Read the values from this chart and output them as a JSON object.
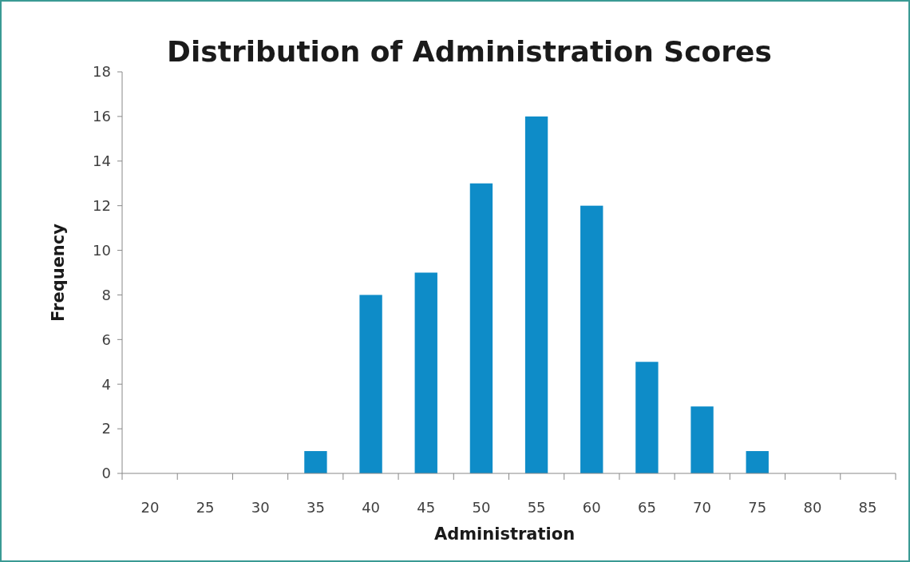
{
  "chart_data": {
    "type": "bar",
    "title": "Distribution of Administration Scores",
    "xlabel": "Administration",
    "ylabel": "Frequency",
    "categories": [
      "20",
      "25",
      "30",
      "35",
      "40",
      "45",
      "50",
      "55",
      "60",
      "65",
      "70",
      "75",
      "80",
      "85"
    ],
    "values": [
      0,
      0,
      0,
      1,
      8,
      9,
      13,
      16,
      12,
      5,
      3,
      1,
      0,
      0
    ],
    "color": "#0e8cc8",
    "ylim": [
      0,
      18
    ],
    "yticks": [
      0,
      2,
      4,
      6,
      8,
      10,
      12,
      14,
      16,
      18
    ],
    "grid": false,
    "legend": false
  }
}
